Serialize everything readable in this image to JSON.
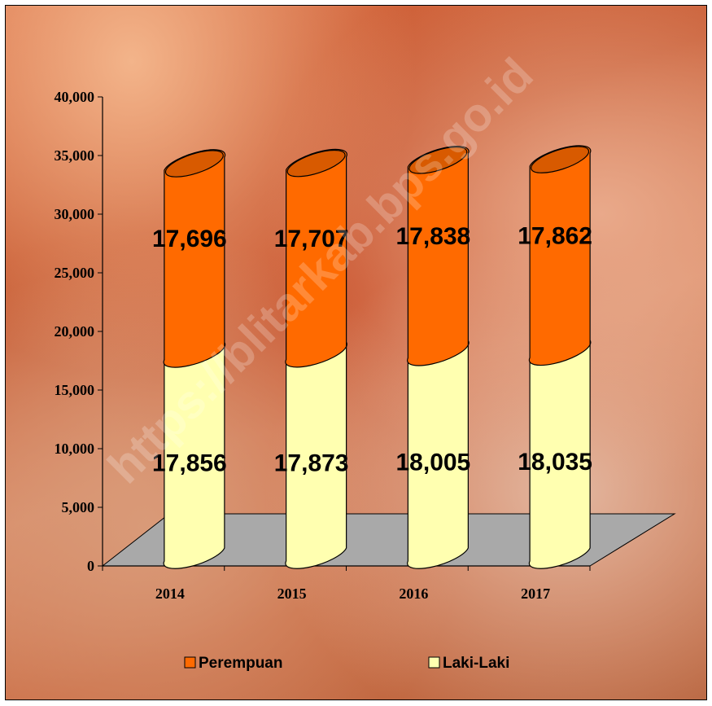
{
  "watermark": "https://blitarkab.bps.go.id",
  "chart_data": {
    "type": "bar",
    "stacked": true,
    "categories": [
      "2014",
      "2015",
      "2016",
      "2017"
    ],
    "series": [
      {
        "name": "Laki-Laki",
        "values": [
          17856,
          17873,
          18005,
          18035
        ],
        "color": "#ffffb0"
      },
      {
        "name": "Perempuan",
        "values": [
          17696,
          17707,
          17838,
          17862
        ],
        "color": "#ff6a00"
      }
    ],
    "value_labels": {
      "Laki-Laki": [
        "17,856",
        "17,873",
        "18,005",
        "18,035"
      ],
      "Perempuan": [
        "17,696",
        "17,707",
        "17,838",
        "17,862"
      ]
    },
    "y_ticks": [
      "0",
      "5,000",
      "10,000",
      "15,000",
      "20,000",
      "25,000",
      "30,000",
      "35,000",
      "40,000"
    ],
    "ylim": [
      0,
      40000
    ],
    "legend_position": "bottom",
    "title": "",
    "xlabel": "",
    "ylabel": ""
  }
}
